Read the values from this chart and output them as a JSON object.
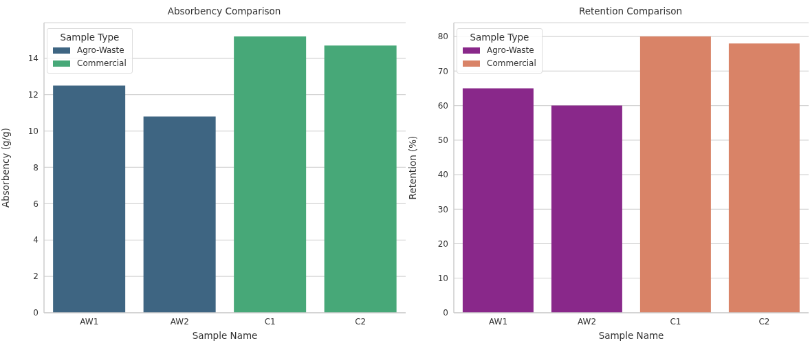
{
  "chart_data": [
    {
      "type": "bar",
      "title": "Absorbency Comparison",
      "xlabel": "Sample Name",
      "ylabel": "Absorbency (g/g)",
      "legend_title": "Sample Type",
      "categories": [
        "AW1",
        "AW2",
        "C1",
        "C2"
      ],
      "series": [
        {
          "name": "Agro-Waste",
          "color": "#3e6582",
          "values": [
            12.5,
            10.8,
            null,
            null
          ]
        },
        {
          "name": "Commercial",
          "color": "#47a878",
          "values": [
            null,
            null,
            15.2,
            14.7
          ]
        }
      ],
      "ylim": [
        0,
        15.96
      ],
      "yticks": [
        0,
        2,
        4,
        6,
        8,
        10,
        12,
        14
      ],
      "grid": "y",
      "legend": "top left"
    },
    {
      "type": "bar",
      "title": "Retention Comparison",
      "xlabel": "Sample Name",
      "ylabel": "Retention (%)",
      "legend_title": "Sample Type",
      "categories": [
        "AW1",
        "AW2",
        "C1",
        "C2"
      ],
      "series": [
        {
          "name": "Agro-Waste",
          "color": "#89288a",
          "values": [
            65,
            60,
            null,
            null
          ]
        },
        {
          "name": "Commercial",
          "color": "#d98367",
          "values": [
            null,
            null,
            80,
            78
          ]
        }
      ],
      "ylim": [
        0,
        84
      ],
      "yticks": [
        0,
        10,
        20,
        30,
        40,
        50,
        60,
        70,
        80
      ],
      "grid": "y",
      "legend": "top left"
    }
  ]
}
